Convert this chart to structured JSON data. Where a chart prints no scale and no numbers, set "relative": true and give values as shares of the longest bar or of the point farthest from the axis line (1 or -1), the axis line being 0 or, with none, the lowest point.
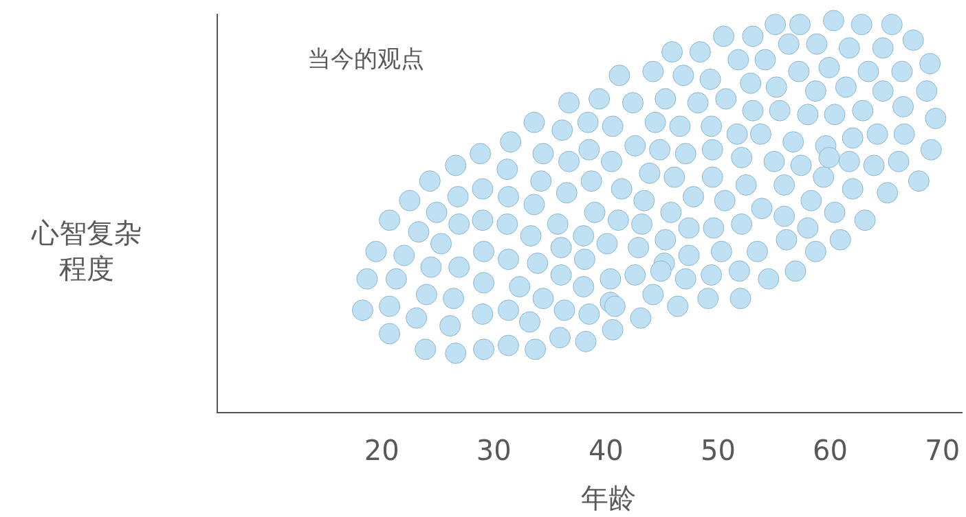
{
  "chart_data": {
    "type": "scatter",
    "title": "当今的观点",
    "xlabel": "年龄",
    "ylabel": "心智复杂程度",
    "relative": true,
    "color": "#bfe1f3",
    "marker": "circle",
    "xlim": [
      5.4,
      71.8
    ],
    "xticks": [
      20,
      30,
      40,
      50,
      60,
      70
    ],
    "x": [
      55.1,
      57.3,
      60.3,
      62.8,
      65.5,
      50.5,
      53.1,
      56.3,
      58.8,
      61.7,
      64.7,
      67.4,
      45.9,
      48.4,
      51.8,
      54.2,
      57.2,
      59.9,
      63.4,
      66.4,
      68.9,
      41.2,
      44.2,
      46.9,
      49.3,
      52.9,
      55.2,
      58.7,
      61.4,
      64.7,
      68.6,
      36.7,
      39.4,
      42.4,
      45.3,
      48.2,
      50.7,
      53.1,
      55.5,
      58.0,
      60.4,
      62.9,
      66.5,
      69.4,
      33.6,
      36.1,
      38.4,
      40.6,
      44.4,
      46.6,
      49.4,
      51.7,
      53.8,
      56.7,
      59.6,
      62.0,
      64.2,
      66.6,
      69.0,
      31.5,
      34.4,
      38.5,
      42.6,
      44.8,
      47.1,
      49.5,
      52.1,
      55.0,
      57.4,
      59.9,
      61.7,
      63.9,
      66.1,
      67.9,
      28.8,
      26.6,
      24.3,
      31.2,
      36.7,
      40.5,
      43.9,
      46.1,
      49.5,
      52.5,
      55.9,
      59.4,
      62.0,
      65.1,
      22.5,
      20.7,
      24.9,
      26.8,
      29.0,
      31.3,
      34.2,
      36.5,
      38.7,
      41.4,
      43.4,
      45.8,
      47.8,
      50.6,
      53.9,
      55.9,
      58.3,
      60.4,
      63.1,
      23.3,
      26.9,
      29.0,
      31.2,
      33.6,
      35.7,
      39.0,
      41.1,
      43.2,
      45.3,
      47.4,
      49.6,
      52.1,
      56.1,
      58.0,
      60.9,
      19.5,
      22.0,
      25.3,
      29.1,
      31.3,
      33.3,
      36.0,
      38.0,
      40.1,
      42.9,
      45.2,
      47.4,
      50.3,
      53.5,
      58.7,
      18.7,
      21.3,
      24.4,
      26.9,
      29.1,
      32.3,
      33.9,
      36.0,
      38.1,
      40.4,
      42.6,
      44.9,
      47.1,
      49.4,
      51.9,
      54.5,
      56.9,
      18.3,
      20.7,
      24.0,
      26.4,
      34.4,
      38.0,
      40.4,
      44.2,
      46.4,
      49.1,
      52.0,
      23.1,
      26.1,
      29.0,
      31.3,
      33.2,
      36.3,
      38.5,
      40.8,
      43.1,
      20.7,
      23.9,
      26.6,
      29.1,
      31.3,
      33.7,
      35.9,
      38.2,
      40.6
    ],
    "values": [
      0.99,
      0.99,
      1.0,
      0.99,
      0.99,
      0.96,
      0.96,
      0.94,
      0.94,
      0.93,
      0.93,
      0.95,
      0.92,
      0.92,
      0.9,
      0.9,
      0.87,
      0.88,
      0.87,
      0.87,
      0.89,
      0.86,
      0.87,
      0.86,
      0.85,
      0.84,
      0.83,
      0.82,
      0.83,
      0.82,
      0.82,
      0.79,
      0.8,
      0.79,
      0.8,
      0.79,
      0.8,
      0.77,
      0.77,
      0.76,
      0.76,
      0.77,
      0.78,
      0.75,
      0.74,
      0.72,
      0.74,
      0.73,
      0.74,
      0.73,
      0.73,
      0.71,
      0.71,
      0.69,
      0.68,
      0.7,
      0.71,
      0.71,
      0.67,
      0.69,
      0.66,
      0.67,
      0.68,
      0.67,
      0.66,
      0.67,
      0.65,
      0.64,
      0.63,
      0.65,
      0.64,
      0.63,
      0.64,
      0.59,
      0.66,
      0.63,
      0.59,
      0.62,
      0.64,
      0.64,
      0.61,
      0.6,
      0.6,
      0.58,
      0.58,
      0.6,
      0.57,
      0.56,
      0.54,
      0.49,
      0.51,
      0.55,
      0.57,
      0.55,
      0.59,
      0.56,
      0.59,
      0.57,
      0.54,
      0.51,
      0.55,
      0.54,
      0.52,
      0.5,
      0.54,
      0.51,
      0.49,
      0.46,
      0.48,
      0.49,
      0.48,
      0.53,
      0.48,
      0.51,
      0.49,
      0.48,
      0.44,
      0.47,
      0.47,
      0.48,
      0.44,
      0.47,
      0.44,
      0.41,
      0.4,
      0.43,
      0.41,
      0.39,
      0.45,
      0.42,
      0.45,
      0.43,
      0.42,
      0.38,
      0.4,
      0.41,
      0.41,
      0.41,
      0.34,
      0.34,
      0.37,
      0.37,
      0.33,
      0.32,
      0.38,
      0.35,
      0.39,
      0.34,
      0.35,
      0.36,
      0.34,
      0.35,
      0.36,
      0.34,
      0.36,
      0.26,
      0.27,
      0.3,
      0.29,
      0.29,
      0.32,
      0.28,
      0.3,
      0.27,
      0.29,
      0.29,
      0.24,
      0.22,
      0.25,
      0.26,
      0.23,
      0.26,
      0.25,
      0.27,
      0.24,
      0.2,
      0.16,
      0.15,
      0.16,
      0.17,
      0.16,
      0.19,
      0.18,
      0.21
    ]
  }
}
